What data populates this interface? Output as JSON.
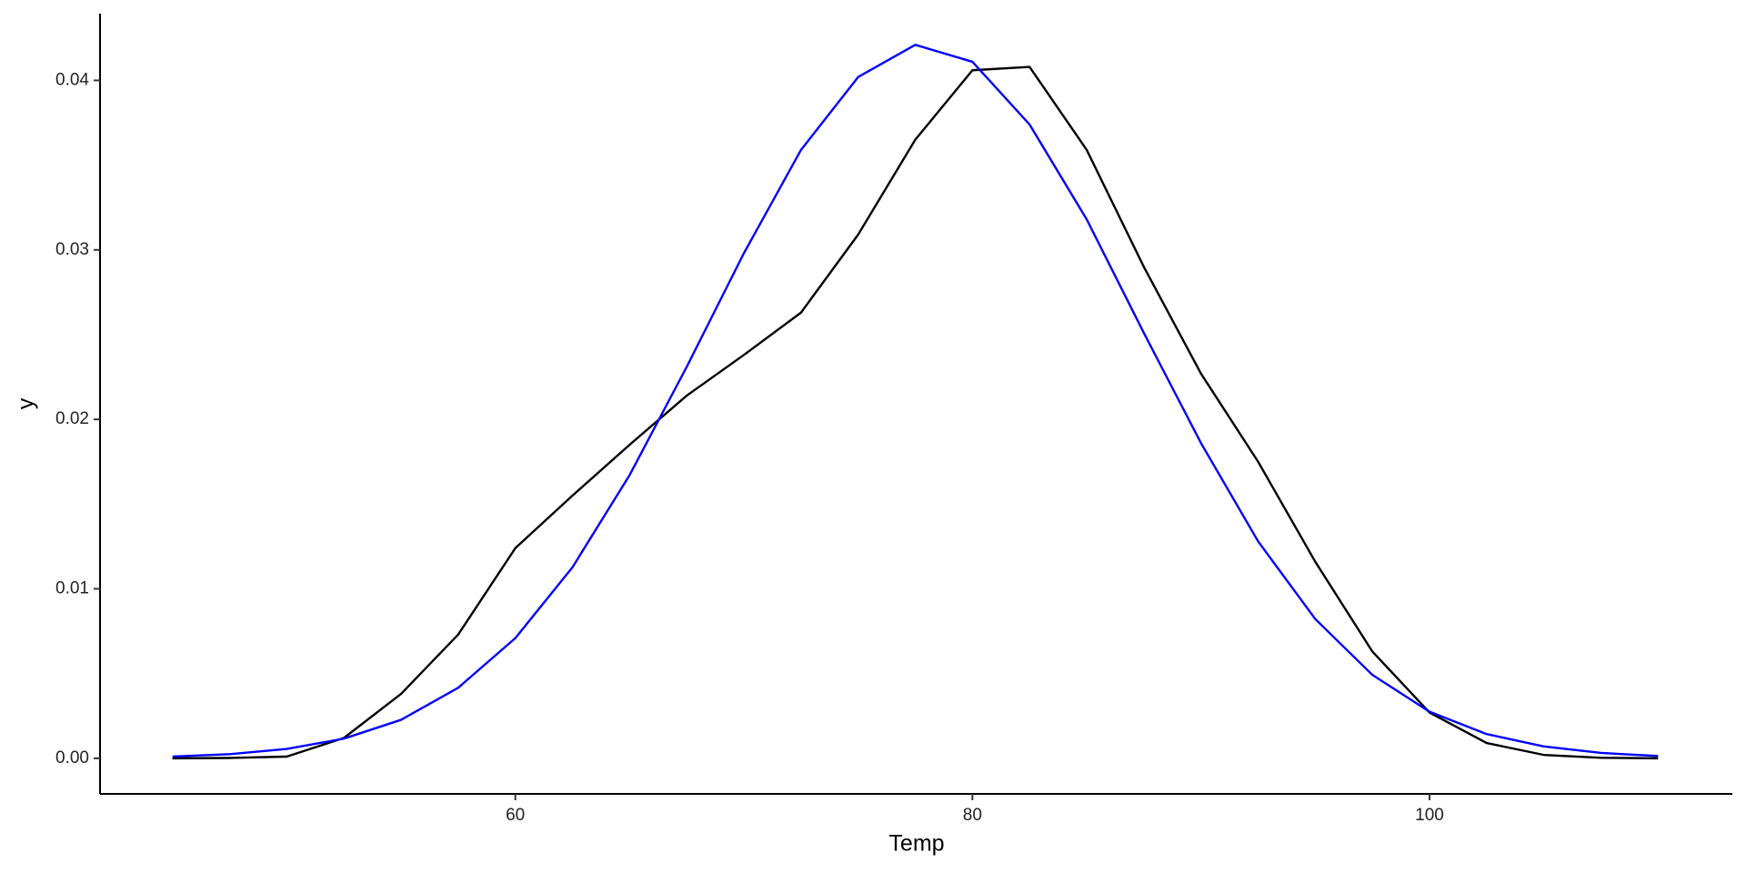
{
  "chart_data": {
    "type": "line",
    "x_label": "Temp",
    "y_label": "y",
    "x": [
      45,
      47.5,
      50,
      52.5,
      55,
      57.5,
      60,
      62.5,
      65,
      67.5,
      70,
      72.5,
      75,
      77.5,
      80,
      82.5,
      85,
      87.5,
      90,
      92.5,
      95,
      97.5,
      100,
      102.5,
      105,
      107.5,
      110
    ],
    "series": [
      {
        "color": "#000000",
        "values": [
          0,
          2e-05,
          0.0001,
          0.0012,
          0.0038,
          0.0073,
          0.0124,
          0.0155,
          0.0185,
          0.0214,
          0.0238,
          0.0263,
          0.0309,
          0.0365,
          0.0406,
          0.0408,
          0.0359,
          0.029,
          0.0227,
          0.0175,
          0.0116,
          0.0063,
          0.0027,
          0.0009,
          0.0002,
          3e-05,
          0
        ]
      },
      {
        "color": "#0000ff",
        "values": [
          0.000102,
          0.000245,
          0.000553,
          0.00116,
          0.00227,
          0.00416,
          0.00709,
          0.01127,
          0.01671,
          0.0231,
          0.0298,
          0.0359,
          0.0402,
          0.0421,
          0.0411,
          0.0374,
          0.0318,
          0.0251,
          0.0186,
          0.0128,
          0.00822,
          0.00492,
          0.00275,
          0.00143,
          0.000698,
          0.000316,
          0.000134
        ]
      }
    ],
    "xlim": [
      41.83,
      113.25
    ],
    "xticks": [
      60,
      80,
      100
    ],
    "ylim": [
      -0.0021,
      0.04394
    ],
    "yticks": [
      {
        "value": 0,
        "label": "0.00"
      },
      {
        "value": 0.01,
        "label": "0.01"
      },
      {
        "value": 0.02,
        "label": "0.02"
      },
      {
        "value": 0.03,
        "label": "0.03"
      },
      {
        "value": 0.04,
        "label": "0.04"
      }
    ],
    "grid": false
  }
}
